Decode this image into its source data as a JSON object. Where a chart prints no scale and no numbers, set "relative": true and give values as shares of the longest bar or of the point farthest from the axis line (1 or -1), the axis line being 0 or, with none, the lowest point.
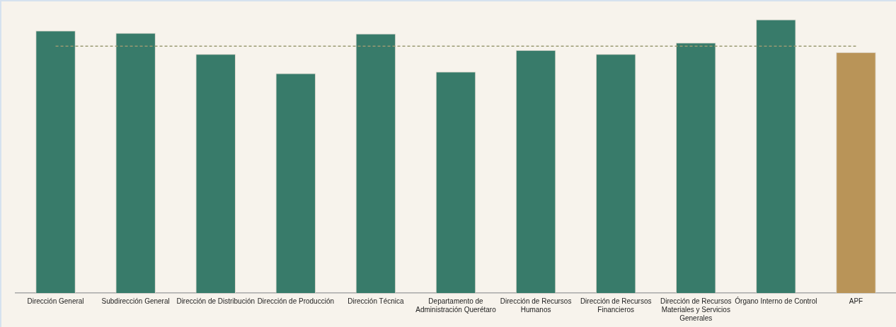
{
  "chart_data": {
    "type": "bar",
    "relative": true,
    "categories": [
      "Dirección General",
      "Subdirección General",
      "Dirección de Distribución",
      "Dirección de Producción",
      "Dirección Técnica",
      "Departamento de Administración Querétaro",
      "Dirección de Recursos Humanos",
      "Dirección de Recursos Financieros",
      "Dirección de Recursos Materiales y Servicios Generales",
      "Órgano Interno de Control",
      "APF"
    ],
    "values": [
      0.959,
      0.951,
      0.874,
      0.803,
      0.948,
      0.809,
      0.888,
      0.874,
      0.915,
      1,
      0.88
    ],
    "colors": [
      "#387b6a",
      "#387b6a",
      "#387b6a",
      "#387b6a",
      "#387b6a",
      "#387b6a",
      "#387b6a",
      "#387b6a",
      "#387b6a",
      "#387b6a",
      "#b99458"
    ],
    "ref_lines": [
      {
        "axis": "y",
        "value": 0.902,
        "color": "#9a9a72",
        "line_style": "dashed"
      }
    ],
    "grid": false,
    "legend": false
  }
}
